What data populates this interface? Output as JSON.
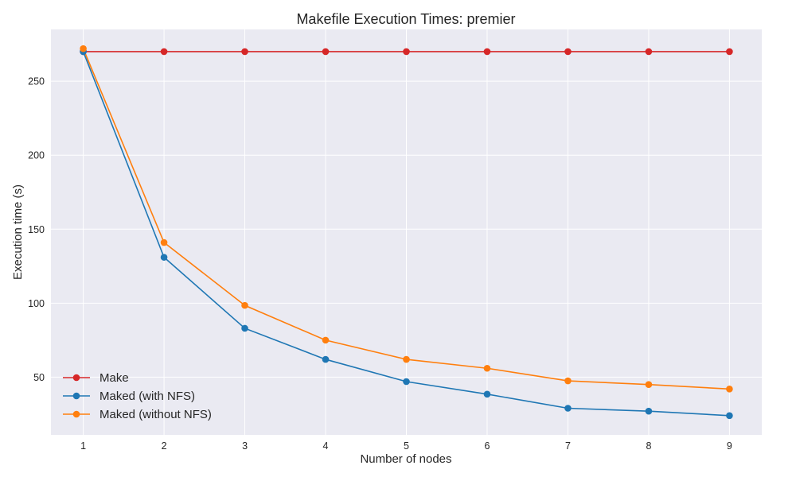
{
  "chart_data": {
    "type": "line",
    "title": "Makefile Execution Times: premier",
    "xlabel": "Number of nodes",
    "ylabel": "Execution time (s)",
    "x": [
      1,
      2,
      3,
      4,
      5,
      6,
      7,
      8,
      9
    ],
    "xticks": [
      "1",
      "2",
      "3",
      "4",
      "5",
      "6",
      "7",
      "8",
      "9"
    ],
    "yticks": [
      "50",
      "100",
      "150",
      "200",
      "250"
    ],
    "ylim": [
      11,
      285
    ],
    "xlim": [
      0.6,
      9.4
    ],
    "grid": true,
    "legend_position": "lower-left",
    "series": [
      {
        "name": "Make",
        "color": "#d62728",
        "values": [
          270,
          270,
          270,
          270,
          270,
          270,
          270,
          270,
          270
        ]
      },
      {
        "name": "Maked (with NFS)",
        "color": "#1f77b4",
        "values": [
          270,
          131,
          83,
          62,
          47,
          38.5,
          29,
          27,
          24
        ]
      },
      {
        "name": "Maked (without NFS)",
        "color": "#ff7f0e",
        "values": [
          272,
          141,
          98.5,
          75,
          62,
          56,
          47.5,
          45,
          42
        ]
      }
    ]
  }
}
